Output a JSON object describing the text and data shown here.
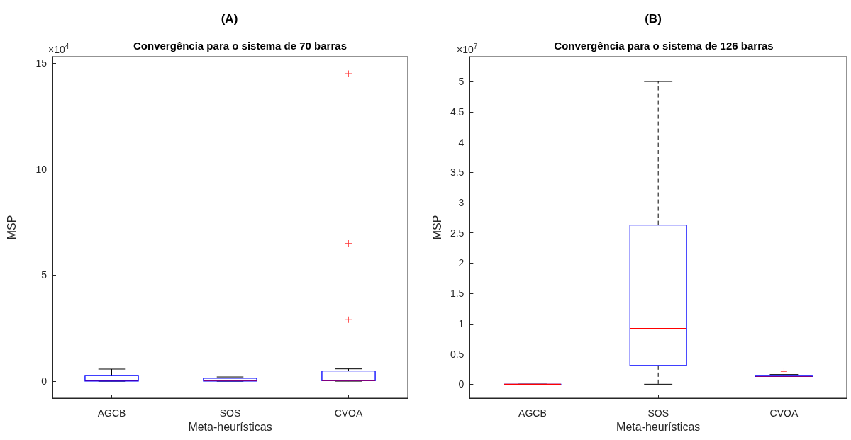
{
  "chart_data": [
    {
      "type": "box",
      "title": "(A)",
      "subtitle": "Convergência para o sistema de 70 barras",
      "xlabel": "Meta-heurísticas",
      "ylabel": "MSP",
      "annotations": [
        "×10$^{4}$"
      ],
      "categories": [
        "AGCB",
        "SOS",
        "CVOA"
      ],
      "ylim": [
        -0.8,
        15.3
      ],
      "yticks": [
        0,
        5,
        10,
        15
      ],
      "grid": false,
      "line_style": "solid",
      "series": [
        {
          "color": "#0000ff",
          "boxes": [
            {
              "low": 0,
              "q1": 0.01,
              "median": 0.05,
              "q3": 0.27,
              "high": 0.57
            },
            {
              "low": 0,
              "q1": 0.01,
              "median": 0.04,
              "q3": 0.14,
              "high": 0.2
            },
            {
              "low": 0,
              "q1": 0.02,
              "median": 0.04,
              "q3": 0.48,
              "high": 0.58
            }
          ]
        },
        {
          "type": "scatter",
          "color": "#ff0000",
          "marker": "cross",
          "x": [
            "CVOA",
            "CVOA",
            "CVOA"
          ],
          "values": [
            14.5,
            6.5,
            2.9
          ]
        }
      ]
    },
    {
      "type": "box",
      "title": "(B)",
      "subtitle": "Convergência para o sistema de 126 barras",
      "xlabel": "Meta-heurísticas",
      "ylabel": "MSP",
      "annotations": [
        "×10$^{7}$"
      ],
      "categories": [
        "AGCB",
        "SOS",
        "CVOA"
      ],
      "ylim": [
        -0.23,
        5.41
      ],
      "yticks": [
        0,
        0.5,
        1,
        1.5,
        2,
        2.5,
        3,
        3.5,
        4,
        4.5,
        5
      ],
      "grid": false,
      "line_style": "dashed",
      "series": [
        {
          "color": "#0000ff",
          "boxes": [
            {
              "low": 0,
              "q1": 0,
              "median": 0,
              "q3": 0,
              "high": 0
            },
            {
              "low": 0,
              "q1": 0.31,
              "median": 0.92,
              "q3": 2.63,
              "high": 5
            },
            {
              "low": 0.13,
              "q1": 0.13,
              "median": 0.135,
              "q3": 0.145,
              "high": 0.16
            }
          ]
        },
        {
          "type": "scatter",
          "color": "#ff0000",
          "marker": "cross",
          "x": [
            "CVOA"
          ],
          "values": [
            0.21
          ]
        }
      ]
    }
  ]
}
